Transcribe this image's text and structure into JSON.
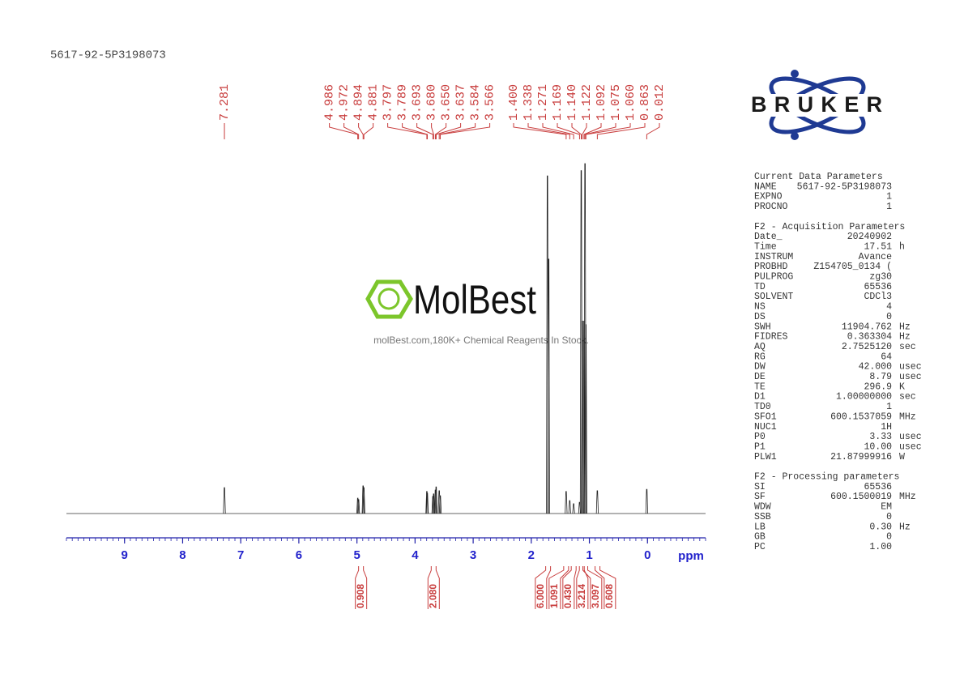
{
  "chart_data": {
    "type": "nmr",
    "title": "5617-92-5P3198073",
    "x_label": "ppm",
    "xlim": [
      10,
      -1
    ],
    "xticks": [
      9,
      8,
      7,
      6,
      5,
      4,
      3,
      2,
      1,
      0
    ],
    "peak_labels": {
      "values": [
        7.281,
        4.986,
        4.972,
        4.894,
        4.881,
        3.797,
        3.789,
        3.693,
        3.68,
        3.65,
        3.637,
        3.584,
        3.566,
        1.4,
        1.338,
        1.271,
        1.169,
        1.14,
        1.122,
        1.092,
        1.075,
        1.06,
        0.863,
        0.012
      ],
      "value_labels": [
        "7.281",
        "4.986",
        "4.972",
        "4.894",
        "4.881",
        "3.797",
        "3.789",
        "3.693",
        "3.680",
        "3.650",
        "3.637",
        "3.584",
        "3.566",
        "1.400",
        "1.338",
        "1.271",
        "1.169",
        "1.140",
        "1.122",
        "1.092",
        "1.075",
        "1.060",
        "0.863",
        "0.012"
      ]
    },
    "signals": {
      "x": [
        7.281,
        4.986,
        4.972,
        4.894,
        4.881,
        3.797,
        3.789,
        3.693,
        3.68,
        3.65,
        3.637,
        3.584,
        3.566,
        1.722,
        1.7,
        1.4,
        1.338,
        1.271,
        1.169,
        1.14,
        1.122,
        1.092,
        1.075,
        1.06,
        0.863,
        0.012
      ],
      "values": [
        7.4,
        4.4,
        4,
        7.9,
        7.4,
        6.3,
        5.8,
        4.9,
        5.6,
        6.7,
        7.6,
        6.5,
        5.1,
        96.5,
        72.7,
        6.3,
        3.7,
        2.8,
        3.2,
        98,
        55,
        55,
        100,
        54,
        6.5,
        6.9
      ]
    },
    "integrals": {
      "x": [
        4.93,
        3.68,
        1.71,
        1.4,
        1.27,
        1.13,
        1.07,
        0.86
      ],
      "values": [
        0.908,
        2.08,
        6,
        1.091,
        0.43,
        3.214,
        3.097,
        0.608
      ],
      "value_labels": [
        "0.908",
        "2.080",
        "6.000",
        "1.091",
        "0.430",
        "3.214",
        "3.097",
        "0.608"
      ]
    }
  },
  "logos": {
    "bruker": "BRUKER",
    "molbest": "MolBest",
    "molbest_tagline": "molBest.com,180K+ Chemical Reagents In Stock."
  },
  "parameters": [
    {
      "title": "Current Data Parameters",
      "rows": [
        [
          "NAME",
          "5617-92-5P3198073"
        ],
        [
          "EXPNO",
          "1"
        ],
        [
          "PROCNO",
          "1"
        ]
      ]
    },
    {
      "title": "F2 - Acquisition Parameters",
      "rows": [
        [
          "Date_",
          "20240902"
        ],
        [
          "Time",
          "17.51",
          "h"
        ],
        [
          "INSTRUM",
          "Avance"
        ],
        [
          "PROBHD",
          "Z154705_0134 ("
        ],
        [
          "PULPROG",
          "zg30"
        ],
        [
          "TD",
          "65536"
        ],
        [
          "SOLVENT",
          "CDCl3"
        ],
        [
          "NS",
          "4"
        ],
        [
          "DS",
          "0"
        ],
        [
          "SWH",
          "11904.762",
          "Hz"
        ],
        [
          "FIDRES",
          "0.363304",
          "Hz"
        ],
        [
          "AQ",
          "2.7525120",
          "sec"
        ],
        [
          "RG",
          "64"
        ],
        [
          "DW",
          "42.000",
          "usec"
        ],
        [
          "DE",
          "8.79",
          "usec"
        ],
        [
          "TE",
          "296.9",
          "K"
        ],
        [
          "D1",
          "1.00000000",
          "sec"
        ],
        [
          "TD0",
          "1"
        ],
        [
          "SFO1",
          "600.1537059",
          "MHz"
        ],
        [
          "NUC1",
          "1H"
        ],
        [
          "P0",
          "3.33",
          "usec"
        ],
        [
          "P1",
          "10.00",
          "usec"
        ],
        [
          "PLW1",
          "21.87999916",
          "W"
        ]
      ]
    },
    {
      "title": "F2 - Processing parameters",
      "rows": [
        [
          "SI",
          "65536"
        ],
        [
          "SF",
          "600.1500019",
          "MHz"
        ],
        [
          "WDW",
          "EM"
        ],
        [
          "SSB",
          "0"
        ],
        [
          "LB",
          "0.30",
          "Hz"
        ],
        [
          "GB",
          "0"
        ],
        [
          "PC",
          "1.00"
        ]
      ]
    }
  ]
}
